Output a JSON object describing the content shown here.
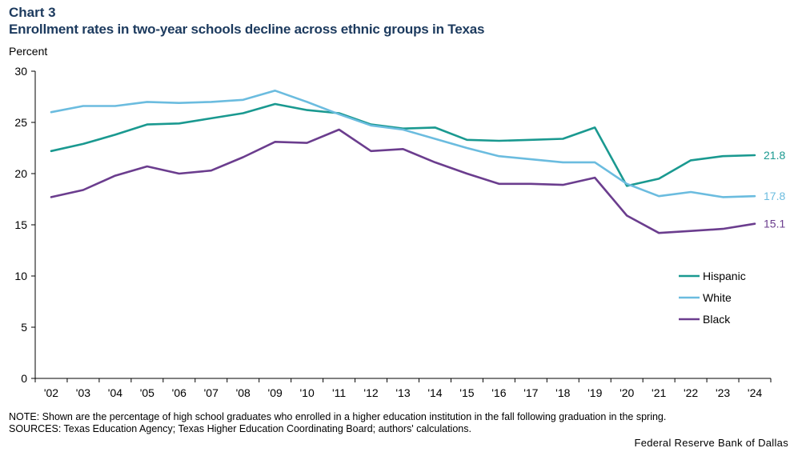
{
  "chart_label": "Chart 3",
  "title": "Enrollment rates in two-year schools decline across ethnic groups in Texas",
  "unit_label": "Percent",
  "note": "NOTE: Shown are the percentage of high school graduates who enrolled in a higher education institution in the fall following graduation in the spring.",
  "sources": "SOURCES: Texas Education Agency; Texas Higher Education Coordinating Board; authors' calculations.",
  "credit": "Federal Reserve Bank of Dallas",
  "chart_data": {
    "type": "line",
    "x": [
      "'02",
      "'03",
      "'04",
      "'05",
      "'06",
      "'07",
      "'08",
      "'09",
      "'10",
      "'11",
      "'12",
      "'13",
      "'14",
      "'15",
      "'16",
      "'17",
      "'18",
      "'19",
      "'20",
      "'21",
      "'22",
      "'23",
      "'24"
    ],
    "ylim": [
      0,
      30
    ],
    "yticks": [
      0,
      5,
      10,
      15,
      20,
      25,
      30
    ],
    "grid": false,
    "legend_position": "right",
    "series": [
      {
        "name": "Hispanic",
        "color": "#1a9990",
        "end_label": "21.8",
        "values": [
          22.2,
          22.9,
          23.8,
          24.8,
          24.9,
          25.4,
          25.9,
          26.8,
          26.2,
          25.9,
          24.8,
          24.4,
          24.5,
          23.3,
          23.2,
          23.3,
          23.4,
          24.5,
          18.8,
          19.5,
          21.3,
          21.7,
          21.8
        ]
      },
      {
        "name": "White",
        "color": "#6bbcdf",
        "end_label": "17.8",
        "values": [
          26.0,
          26.6,
          26.6,
          27.0,
          26.9,
          27.0,
          27.2,
          28.1,
          27.0,
          25.8,
          24.7,
          24.3,
          23.4,
          22.5,
          21.7,
          21.4,
          21.1,
          21.1,
          19.0,
          17.8,
          18.2,
          17.7,
          17.8
        ]
      },
      {
        "name": "Black",
        "color": "#6b3d8e",
        "end_label": "15.1",
        "values": [
          17.7,
          18.4,
          19.8,
          20.7,
          20.0,
          20.3,
          21.6,
          23.1,
          23.0,
          24.3,
          22.2,
          22.4,
          21.1,
          20.0,
          19.0,
          19.0,
          18.9,
          19.6,
          15.9,
          14.2,
          14.4,
          14.6,
          15.1
        ]
      }
    ]
  }
}
